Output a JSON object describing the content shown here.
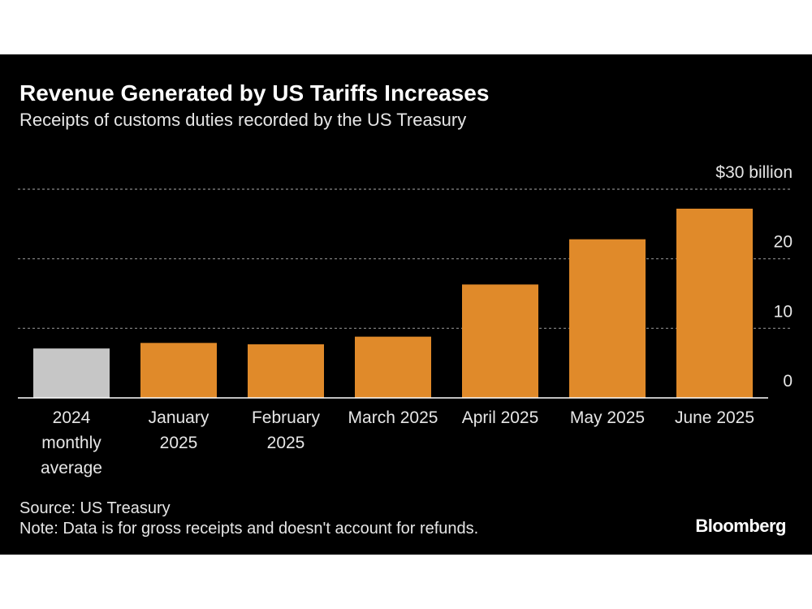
{
  "chart_data": {
    "type": "bar",
    "title": "Revenue Generated by US Tariffs Increases",
    "subtitle": "Receipts of customs duties recorded by the US Treasury",
    "categories": [
      [
        "2024",
        "monthly",
        "average"
      ],
      [
        "January",
        "2025"
      ],
      [
        "February",
        "2025"
      ],
      [
        "March 2025"
      ],
      [
        "April 2025"
      ],
      [
        "May 2025"
      ],
      [
        "June 2025"
      ]
    ],
    "values": [
      7.1,
      7.9,
      7.7,
      8.8,
      16.3,
      22.8,
      27.2
    ],
    "highlight": [
      false,
      true,
      true,
      true,
      true,
      true,
      true
    ],
    "yticks": [
      0,
      10,
      20,
      30
    ],
    "ytick_labels": [
      "0",
      "10",
      "20",
      "$30 billion"
    ],
    "ylim": [
      0,
      30
    ],
    "grid": true,
    "yaxis_position": "right",
    "colors": {
      "bar": "#e08a2a",
      "baseline_bar": "#c6c6c6",
      "grid": "#8a8a8a",
      "axis": "#ffffff"
    }
  },
  "footer": {
    "source": "Source: US Treasury",
    "note": "Note: Data is for gross receipts and doesn't account for refunds.",
    "brand": "Bloomberg"
  }
}
